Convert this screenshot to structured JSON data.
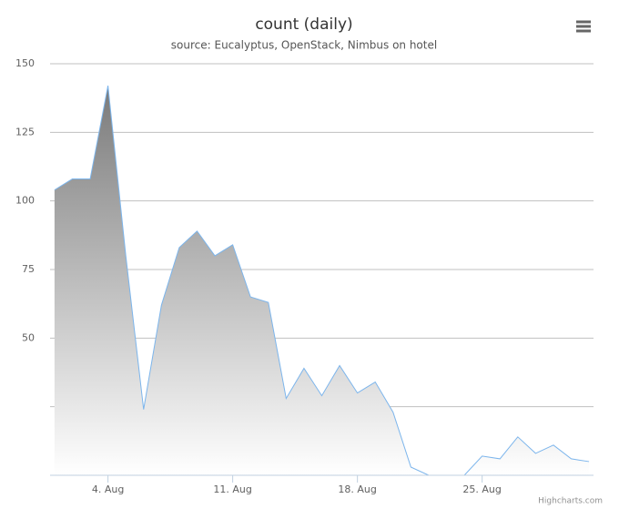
{
  "chart_data": {
    "type": "area",
    "title": "count (daily)",
    "subtitle": "source: Eucalyptus, OpenStack, Nimbus on hotel",
    "x": [
      1,
      2,
      3,
      4,
      5,
      6,
      7,
      8,
      9,
      10,
      11,
      12,
      13,
      14,
      15,
      16,
      17,
      18,
      19,
      20,
      21,
      22,
      23,
      24,
      25,
      26,
      27,
      28,
      29,
      30,
      31
    ],
    "series": [
      {
        "color": "#7cb5ec",
        "values": [
          104,
          108,
          108,
          142,
          80,
          24,
          62,
          83,
          89,
          80,
          84,
          65,
          63,
          28,
          39,
          29,
          40,
          30,
          34,
          23,
          3,
          0,
          0,
          0,
          7,
          6,
          14,
          8,
          11,
          6,
          5
        ]
      }
    ],
    "xlim": [
      0.75,
      31.25
    ],
    "xticks": [
      {
        "value": 4,
        "label": "4. Aug"
      },
      {
        "value": 11,
        "label": "11. Aug"
      },
      {
        "value": 18,
        "label": "18. Aug"
      },
      {
        "value": 25,
        "label": "25. Aug"
      }
    ],
    "ylim": [
      0,
      150
    ],
    "yticks": [
      {
        "value": 0,
        "label": null
      },
      {
        "value": 25,
        "label": null
      },
      50,
      75,
      100,
      125,
      150
    ],
    "grid": true,
    "credits": "Highcharts.com"
  }
}
